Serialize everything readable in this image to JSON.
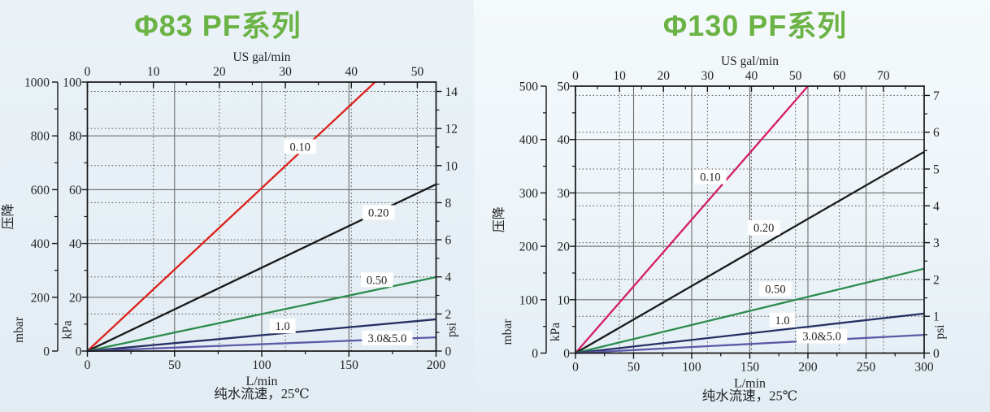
{
  "page": {
    "title_color": "#6bb345",
    "figure_description": "纯水流速压降曲线"
  },
  "chart_data": [
    {
      "type": "line",
      "title": "Φ83 PF系列",
      "y_label": "压降",
      "x_caption": "纯水流速，25℃",
      "x_axis": {
        "label": "L/min",
        "min": 0,
        "max": 200,
        "ticks": [
          0,
          50,
          100,
          150,
          200
        ],
        "minor_step": 25
      },
      "x_top_axis": {
        "label": "US gal/min",
        "ticks": [
          0,
          10,
          20,
          30,
          40,
          50
        ],
        "minor_step": 5,
        "liters_per_gal": 3.785
      },
      "y_axis_kpa": {
        "label": "kPa",
        "min": 0,
        "max": 100,
        "ticks": [
          0,
          20,
          40,
          60,
          80,
          100
        ],
        "minor_step": 10
      },
      "y_axis_mbar": {
        "label": "mbar",
        "min": 0,
        "max": 1000,
        "ticks": [
          0,
          200,
          400,
          600,
          800,
          1000
        ],
        "minor_step": 100
      },
      "y_axis_psi": {
        "label": "psi",
        "ticks": [
          0,
          2,
          4,
          6,
          8,
          10,
          12,
          14
        ],
        "minor_step": 1,
        "kpa_per_psi": 6.89476
      },
      "grid": {
        "solid_color": "#6d6d6d",
        "dotted_color": "#4d4d4d"
      },
      "series": [
        {
          "name": "0.10",
          "color": "#dd2019",
          "points_lmin_kpa": [
            [
              0,
              0
            ],
            [
              165,
              100
            ]
          ],
          "label_at": [
            122,
            76
          ]
        },
        {
          "name": "0.20",
          "color": "#1b1b1b",
          "points_lmin_kpa": [
            [
              0,
              0
            ],
            [
              200,
              62
            ]
          ],
          "label_at": [
            167,
            51.5
          ]
        },
        {
          "name": "0.50",
          "color": "#2c8c4f",
          "points_lmin_kpa": [
            [
              0,
              0
            ],
            [
              200,
              27.5
            ]
          ],
          "label_at": [
            166,
            26.5
          ]
        },
        {
          "name": "1.0",
          "color": "#252f63",
          "points_lmin_kpa": [
            [
              0,
              0
            ],
            [
              200,
              11.8
            ]
          ],
          "label_at": [
            112,
            9.3
          ]
        },
        {
          "name": "3.0&5.0",
          "color": "#5e58a8",
          "points_lmin_kpa": [
            [
              0,
              0
            ],
            [
              200,
              5.1
            ]
          ],
          "label_at": [
            172,
            4.9
          ]
        }
      ]
    },
    {
      "type": "line",
      "title": "Φ130 PF系列",
      "y_label": "压降",
      "x_caption": "纯水流速，25℃",
      "x_axis": {
        "label": "L/min",
        "min": 0,
        "max": 300,
        "ticks": [
          0,
          50,
          100,
          150,
          200,
          250,
          300
        ],
        "minor_step": 25
      },
      "x_top_axis": {
        "label": "US gal/min",
        "ticks": [
          0,
          10,
          20,
          30,
          40,
          50,
          60,
          70
        ],
        "minor_step": 5,
        "liters_per_gal": 3.785
      },
      "y_axis_kpa": {
        "label": "kPa",
        "min": 0,
        "max": 50,
        "ticks": [
          0,
          10,
          20,
          30,
          40,
          50
        ],
        "minor_step": 5
      },
      "y_axis_mbar": {
        "label": "mbar",
        "min": 0,
        "max": 500,
        "ticks": [
          0,
          100,
          200,
          300,
          400,
          500
        ],
        "minor_step": 50
      },
      "y_axis_psi": {
        "label": "psi",
        "ticks": [
          0,
          1,
          2,
          3,
          4,
          5,
          6,
          7
        ],
        "minor_step": 0.5,
        "kpa_per_psi": 6.89476
      },
      "grid": {
        "solid_color": "#6d6d6d",
        "dotted_color": "#4d4d4d"
      },
      "series": [
        {
          "name": "0.10",
          "color": "#d41d67",
          "points_lmin_kpa": [
            [
              0,
              0
            ],
            [
              200,
              50
            ]
          ],
          "label_at": [
            116,
            33
          ]
        },
        {
          "name": "0.20",
          "color": "#1b1b1b",
          "points_lmin_kpa": [
            [
              0,
              0
            ],
            [
              300,
              37.7
            ]
          ],
          "label_at": [
            162,
            23.5
          ]
        },
        {
          "name": "0.50",
          "color": "#2c8c4f",
          "points_lmin_kpa": [
            [
              0,
              0
            ],
            [
              300,
              15.8
            ]
          ],
          "label_at": [
            172,
            12
          ]
        },
        {
          "name": "1.0",
          "color": "#252f63",
          "points_lmin_kpa": [
            [
              0,
              0
            ],
            [
              300,
              7.4
            ]
          ],
          "label_at": [
            178,
            6.2
          ]
        },
        {
          "name": "3.0&5.0",
          "color": "#5e58a8",
          "points_lmin_kpa": [
            [
              0,
              0
            ],
            [
              300,
              3.4
            ]
          ],
          "label_at": [
            212,
            3.2
          ]
        }
      ]
    }
  ]
}
